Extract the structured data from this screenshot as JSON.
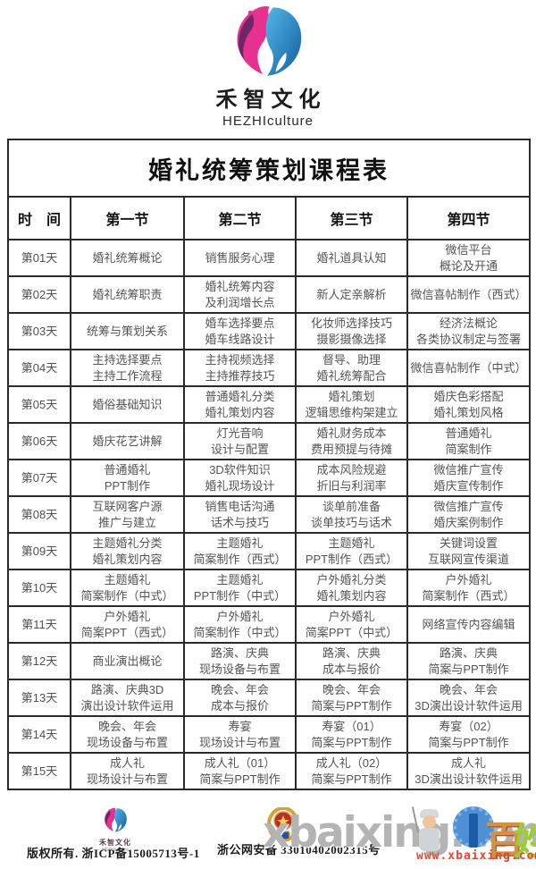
{
  "brand": {
    "name": "禾智文化",
    "subtitle": "HEZHIculture",
    "colors": {
      "pink": "#e73090",
      "purple": "#6d2766",
      "blue_light": "#53b7e8",
      "blue_dark": "#135e9e"
    }
  },
  "table": {
    "title": "婚礼统筹策划课程表",
    "headers": [
      "时　间",
      "第一节",
      "第二节",
      "第三节",
      "第四节"
    ],
    "rows": [
      {
        "day": "第01天",
        "cells": [
          [
            "婚礼统筹概论"
          ],
          [
            "销售服务心理"
          ],
          [
            "婚礼道具认知"
          ],
          [
            "微信平台",
            "概论及开通"
          ]
        ]
      },
      {
        "day": "第02天",
        "cells": [
          [
            "婚礼统筹职责"
          ],
          [
            "婚礼统筹内容",
            "及利润增长点"
          ],
          [
            "新人定亲解析"
          ],
          [
            "微信喜帖制作（西式）"
          ]
        ]
      },
      {
        "day": "第03天",
        "cells": [
          [
            "统筹与策划关系"
          ],
          [
            "婚车选择要点",
            "婚车线路设计"
          ],
          [
            "化妆师选择技巧",
            "摄影摄像选择"
          ],
          [
            "经济法概论",
            "各类协议制定与签署"
          ]
        ]
      },
      {
        "day": "第04天",
        "cells": [
          [
            "主持选择要点",
            "主持工作流程"
          ],
          [
            "主持视频选择",
            "主持推荐技巧"
          ],
          [
            "督导、助理",
            "婚礼统筹配合"
          ],
          [
            "微信喜帖制作（中式）"
          ]
        ]
      },
      {
        "day": "第05天",
        "cells": [
          [
            "婚俗基础知识"
          ],
          [
            "普通婚礼分类",
            "婚礼策划内容"
          ],
          [
            "婚礼策划",
            "逻辑思维构架建立"
          ],
          [
            "婚庆色彩搭配",
            "婚礼策划风格"
          ]
        ]
      },
      {
        "day": "第06天",
        "cells": [
          [
            "婚庆花艺讲解"
          ],
          [
            "灯光音响",
            "设计与配置"
          ],
          [
            "婚礼财务成本",
            "费用预提与待摊"
          ],
          [
            "普通婚礼",
            "简案制作"
          ]
        ]
      },
      {
        "day": "第07天",
        "cells": [
          [
            "普通婚礼",
            "PPT制作"
          ],
          [
            "3D软件知识",
            "婚礼现场设计"
          ],
          [
            "成本风险规避",
            "折旧与利润率"
          ],
          [
            "微信推广宣传",
            "婚庆宣传制作"
          ]
        ]
      },
      {
        "day": "第08天",
        "cells": [
          [
            "互联网客户源",
            "推广与建立"
          ],
          [
            "销售电话沟通",
            "话术与技巧"
          ],
          [
            "谈单前准备",
            "谈单技巧与话术"
          ],
          [
            "微信推广宣传",
            "婚庆案例制作"
          ]
        ]
      },
      {
        "day": "第09天",
        "cells": [
          [
            "主题婚礼分类",
            "婚礼策划内容"
          ],
          [
            "主题婚礼",
            "简案制作（西式）"
          ],
          [
            "主题婚礼",
            "PPT制作（西式）"
          ],
          [
            "关键词设置",
            "互联网宣传渠道"
          ]
        ]
      },
      {
        "day": "第10天",
        "cells": [
          [
            "主题婚礼",
            "简案制作（中式）"
          ],
          [
            "主题婚礼",
            "PPT制作（中式）"
          ],
          [
            "户外婚礼分类",
            "婚礼策划内容"
          ],
          [
            "户外婚礼",
            "简案制作（西式）"
          ]
        ]
      },
      {
        "day": "第11天",
        "cells": [
          [
            "户外婚礼",
            "简案PPT（西式）"
          ],
          [
            "户外婚礼",
            "简案制作（中式）"
          ],
          [
            "户外婚礼",
            "简案PPT（中式）"
          ],
          [
            "网络宣传内容编辑"
          ]
        ]
      },
      {
        "day": "第12天",
        "cells": [
          [
            "商业演出概论"
          ],
          [
            "路演、庆典",
            "现场设备与布置"
          ],
          [
            "路演、庆典",
            "成本与报价"
          ],
          [
            "路演、庆典",
            "简案与PPT制作"
          ]
        ]
      },
      {
        "day": "第13天",
        "cells": [
          [
            "路演、庆典3D",
            "演出设计软件运用"
          ],
          [
            "晚会、年会",
            "成本与报价"
          ],
          [
            "晚会、年会",
            "简案与PPT制作"
          ],
          [
            "晚会、年会",
            "3D演出设计软件运用"
          ]
        ]
      },
      {
        "day": "第14天",
        "cells": [
          [
            "晚会、年会",
            "现场设备与布置"
          ],
          [
            "寿宴",
            "现场设计与布置"
          ],
          [
            "寿宴（01）",
            "简案与PPT制作"
          ],
          [
            "寿宴（02）",
            "简案与PPT制作"
          ]
        ]
      },
      {
        "day": "第15天",
        "cells": [
          [
            "成人礼",
            "现场设计与布置"
          ],
          [
            "成人礼（01）",
            "简案与PPT制作"
          ],
          [
            "成人礼（02）",
            "简案与PPT制作"
          ],
          [
            "成人礼",
            "3D演出设计软件运用"
          ]
        ]
      }
    ]
  },
  "footer": {
    "brand_name": "禾智文化",
    "brand_subtitle": "HEZHIculture",
    "copyright": "版权所有. 浙ICP备15005713号-1",
    "security_label": "浙公网安备",
    "security_number": "33010402002315号"
  },
  "watermark": {
    "text": "xbaixing.com",
    "url": "www.xbaixing.com",
    "art_char_1": "百",
    "art_char_2": "姓"
  }
}
